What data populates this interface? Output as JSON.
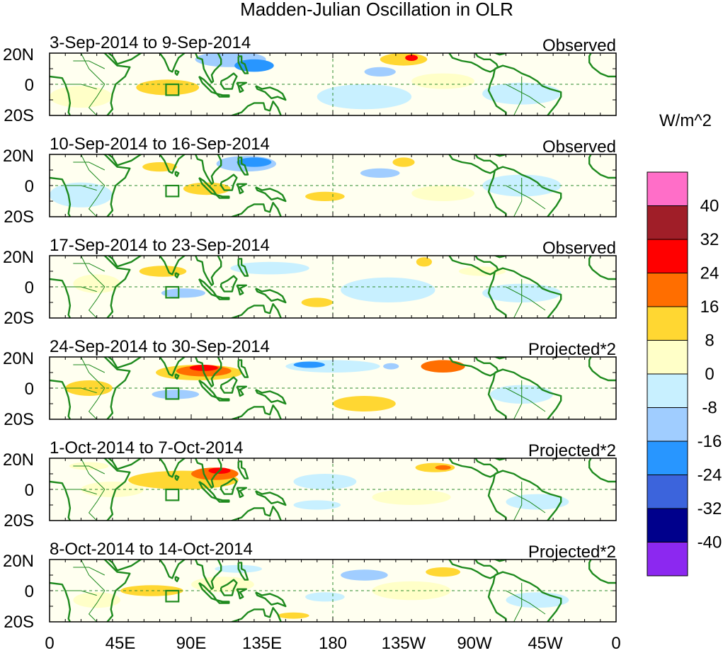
{
  "figure": {
    "title": "Madden-Julian Oscillation in OLR",
    "units": "W/m^2",
    "x_ticks": [
      "0",
      "45E",
      "90E",
      "135E",
      "180",
      "135W",
      "90W",
      "45W",
      "0"
    ],
    "y_ticks": [
      "20N",
      "0",
      "20S"
    ]
  },
  "panels": [
    {
      "id": "p1",
      "period": "3-Sep-2014 to 9-Sep-2014",
      "kind": "Observed",
      "anomalies": [
        {
          "lon": 20,
          "lat": -8,
          "w": 40,
          "h": 14,
          "v": 4
        },
        {
          "lon": 75,
          "lat": -2,
          "w": 40,
          "h": 10,
          "v": 10
        },
        {
          "lon": 115,
          "lat": 16,
          "w": 45,
          "h": 10,
          "v": -14
        },
        {
          "lon": 130,
          "lat": 12,
          "w": 25,
          "h": 8,
          "v": -24
        },
        {
          "lon": 200,
          "lat": -8,
          "w": 60,
          "h": 16,
          "v": -4
        },
        {
          "lon": 225,
          "lat": 16,
          "w": 30,
          "h": 8,
          "v": 12
        },
        {
          "lon": 230,
          "lat": 17,
          "w": 8,
          "h": 4,
          "v": 26
        },
        {
          "lon": 210,
          "lat": 8,
          "w": 20,
          "h": 6,
          "v": -10
        },
        {
          "lon": 300,
          "lat": -6,
          "w": 50,
          "h": 14,
          "v": -4
        },
        {
          "lon": 250,
          "lat": 2,
          "w": 40,
          "h": 10,
          "v": 5
        }
      ]
    },
    {
      "id": "p2",
      "period": "10-Sep-2014 to 16-Sep-2014",
      "kind": "Observed",
      "anomalies": [
        {
          "lon": 20,
          "lat": -6,
          "w": 40,
          "h": 16,
          "v": -4
        },
        {
          "lon": 70,
          "lat": 12,
          "w": 22,
          "h": 6,
          "v": 11
        },
        {
          "lon": 125,
          "lat": 14,
          "w": 38,
          "h": 10,
          "v": -14
        },
        {
          "lon": 130,
          "lat": 15,
          "w": 22,
          "h": 6,
          "v": -24
        },
        {
          "lon": 100,
          "lat": -2,
          "w": 30,
          "h": 8,
          "v": 9
        },
        {
          "lon": 175,
          "lat": -7,
          "w": 25,
          "h": 6,
          "v": 10
        },
        {
          "lon": 225,
          "lat": 15,
          "w": 14,
          "h": 6,
          "v": 12
        },
        {
          "lon": 210,
          "lat": 8,
          "w": 25,
          "h": 6,
          "v": -10
        },
        {
          "lon": 300,
          "lat": 0,
          "w": 50,
          "h": 14,
          "v": -5
        },
        {
          "lon": 250,
          "lat": -5,
          "w": 40,
          "h": 10,
          "v": 4
        }
      ]
    },
    {
      "id": "p3",
      "period": "17-Sep-2014 to 23-Sep-2014",
      "kind": "Observed",
      "anomalies": [
        {
          "lon": 72,
          "lat": 10,
          "w": 30,
          "h": 7,
          "v": 12
        },
        {
          "lon": 30,
          "lat": 2,
          "w": 30,
          "h": 12,
          "v": 4
        },
        {
          "lon": 85,
          "lat": -4,
          "w": 28,
          "h": 6,
          "v": -10
        },
        {
          "lon": 140,
          "lat": 12,
          "w": 50,
          "h": 8,
          "v": -6
        },
        {
          "lon": 170,
          "lat": -10,
          "w": 20,
          "h": 6,
          "v": 10
        },
        {
          "lon": 215,
          "lat": -2,
          "w": 60,
          "h": 16,
          "v": -5
        },
        {
          "lon": 238,
          "lat": 16,
          "w": 10,
          "h": 6,
          "v": 10
        },
        {
          "lon": 300,
          "lat": -4,
          "w": 50,
          "h": 12,
          "v": -4
        },
        {
          "lon": 275,
          "lat": 10,
          "w": 30,
          "h": 6,
          "v": 4
        }
      ]
    },
    {
      "id": "p4",
      "period": "24-Sep-2014 to 30-Sep-2014",
      "kind": "Projected*2",
      "anomalies": [
        {
          "lon": 95,
          "lat": 10,
          "w": 55,
          "h": 10,
          "v": 14
        },
        {
          "lon": 98,
          "lat": 11,
          "w": 35,
          "h": 7,
          "v": 22
        },
        {
          "lon": 98,
          "lat": 13,
          "w": 18,
          "h": 4,
          "v": 30
        },
        {
          "lon": 25,
          "lat": 0,
          "w": 30,
          "h": 10,
          "v": 8
        },
        {
          "lon": 80,
          "lat": -4,
          "w": 30,
          "h": 6,
          "v": -12
        },
        {
          "lon": 180,
          "lat": 14,
          "w": 60,
          "h": 8,
          "v": -8
        },
        {
          "lon": 165,
          "lat": 15,
          "w": 20,
          "h": 4,
          "v": -18
        },
        {
          "lon": 200,
          "lat": -10,
          "w": 40,
          "h": 10,
          "v": 12
        },
        {
          "lon": 250,
          "lat": 14,
          "w": 28,
          "h": 8,
          "v": 16
        },
        {
          "lon": 250,
          "lat": 14,
          "w": 12,
          "h": 5,
          "v": 22
        },
        {
          "lon": 217,
          "lat": 14,
          "w": 10,
          "h": 4,
          "v": -16
        },
        {
          "lon": 300,
          "lat": -4,
          "w": 40,
          "h": 12,
          "v": -5
        }
      ]
    },
    {
      "id": "p5",
      "period": "1-Oct-2014 to 7-Oct-2014",
      "kind": "Projected*2",
      "anomalies": [
        {
          "lon": 85,
          "lat": 6,
          "w": 70,
          "h": 12,
          "v": 10
        },
        {
          "lon": 105,
          "lat": 10,
          "w": 30,
          "h": 8,
          "v": 16
        },
        {
          "lon": 108,
          "lat": 12,
          "w": 14,
          "h": 4,
          "v": 24
        },
        {
          "lon": 40,
          "lat": 0,
          "w": 40,
          "h": 10,
          "v": 7
        },
        {
          "lon": 25,
          "lat": 15,
          "w": 25,
          "h": 5,
          "v": 6
        },
        {
          "lon": 175,
          "lat": 5,
          "w": 40,
          "h": 10,
          "v": -5
        },
        {
          "lon": 170,
          "lat": -10,
          "w": 30,
          "h": 6,
          "v": -8
        },
        {
          "lon": 245,
          "lat": 14,
          "w": 25,
          "h": 6,
          "v": 12
        },
        {
          "lon": 250,
          "lat": 14,
          "w": 10,
          "h": 3,
          "v": 20
        },
        {
          "lon": 230,
          "lat": -5,
          "w": 50,
          "h": 10,
          "v": 4
        },
        {
          "lon": 310,
          "lat": -8,
          "w": 40,
          "h": 10,
          "v": -4
        }
      ]
    },
    {
      "id": "p6",
      "period": "8-Oct-2014 to 14-Oct-2014",
      "kind": "Projected*2",
      "anomalies": [
        {
          "lon": 65,
          "lat": 0,
          "w": 40,
          "h": 7,
          "v": 12
        },
        {
          "lon": 30,
          "lat": -6,
          "w": 30,
          "h": 10,
          "v": 4
        },
        {
          "lon": 110,
          "lat": 4,
          "w": 40,
          "h": 10,
          "v": 4
        },
        {
          "lon": 200,
          "lat": 10,
          "w": 30,
          "h": 7,
          "v": -10
        },
        {
          "lon": 175,
          "lat": -4,
          "w": 25,
          "h": 6,
          "v": -8
        },
        {
          "lon": 155,
          "lat": -16,
          "w": 20,
          "h": 4,
          "v": 10
        },
        {
          "lon": 250,
          "lat": 12,
          "w": 22,
          "h": 6,
          "v": 10
        },
        {
          "lon": 230,
          "lat": 0,
          "w": 50,
          "h": 12,
          "v": 4
        },
        {
          "lon": 310,
          "lat": -6,
          "w": 40,
          "h": 10,
          "v": -4
        },
        {
          "lon": 120,
          "lat": 14,
          "w": 30,
          "h": 5,
          "v": -5
        }
      ]
    }
  ],
  "colorbar": {
    "labels": [
      "40",
      "32",
      "24",
      "16",
      "8",
      "0",
      "-8",
      "-16",
      "-24",
      "-32",
      "-40"
    ],
    "colors": [
      "#ff6ec8",
      "#a01e28",
      "#ff0000",
      "#ff6e00",
      "#ffd732",
      "#ffffc8",
      "#c8f0ff",
      "#a0cdff",
      "#2896ff",
      "#3c64dc",
      "#00008c",
      "#8c28f0"
    ]
  },
  "map_colors": {
    "coast": "#1e8a1e",
    "base": "#fffff0"
  }
}
